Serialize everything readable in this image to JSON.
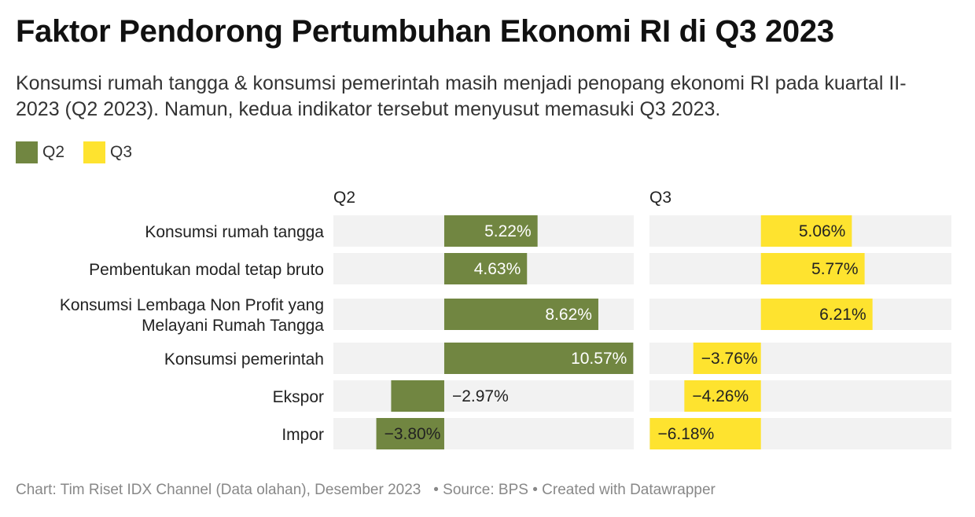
{
  "title": "Faktor Pendorong Pertumbuhan Ekonomi RI di Q3 2023",
  "subtitle": "Konsumsi rumah tangga & konsumsi pemerintah masih menjadi penopang ekonomi RI pada kuartal II-2023 (Q2 2023). Namun, kedua indikator tersebut menyusut memasuki Q3 2023.",
  "legend": [
    {
      "label": "Q2",
      "color": "#718641"
    },
    {
      "label": "Q3",
      "color": "#fee32f"
    }
  ],
  "footer": {
    "credit": "Chart: Tim Riset IDX Channel (Data olahan), Desember 2023",
    "source": "Source: BPS",
    "created": "Created with Datawrapper"
  },
  "chart_data": {
    "type": "bar",
    "orientation": "horizontal",
    "layout": "split-bars",
    "categories": [
      [
        "Konsumsi rumah tangga"
      ],
      [
        "Pembentukan modal tetap bruto"
      ],
      [
        "Konsumsi Lembaga Non Profit yang",
        "Melayani Rumah Tangga"
      ],
      [
        "Konsumsi pemerintah"
      ],
      [
        "Ekspor"
      ],
      [
        "Impor"
      ]
    ],
    "series": [
      {
        "name": "Q2",
        "color": "#718641",
        "values": [
          5.22,
          4.63,
          8.62,
          10.57,
          -2.97,
          -3.8
        ],
        "labels": [
          "5.22%",
          "4.63%",
          "8.62%",
          "10.57%",
          "−2.97%",
          "−3.80%"
        ]
      },
      {
        "name": "Q3",
        "color": "#fee32f",
        "values": [
          5.06,
          5.77,
          6.21,
          -3.76,
          -4.26,
          -6.18
        ],
        "labels": [
          "5.06%",
          "5.77%",
          "6.21%",
          "−3.76%",
          "−4.26%",
          "−6.18%"
        ]
      }
    ],
    "xlim": [
      -6.2,
      10.6
    ],
    "grid": false,
    "legend_position": "top-left"
  }
}
